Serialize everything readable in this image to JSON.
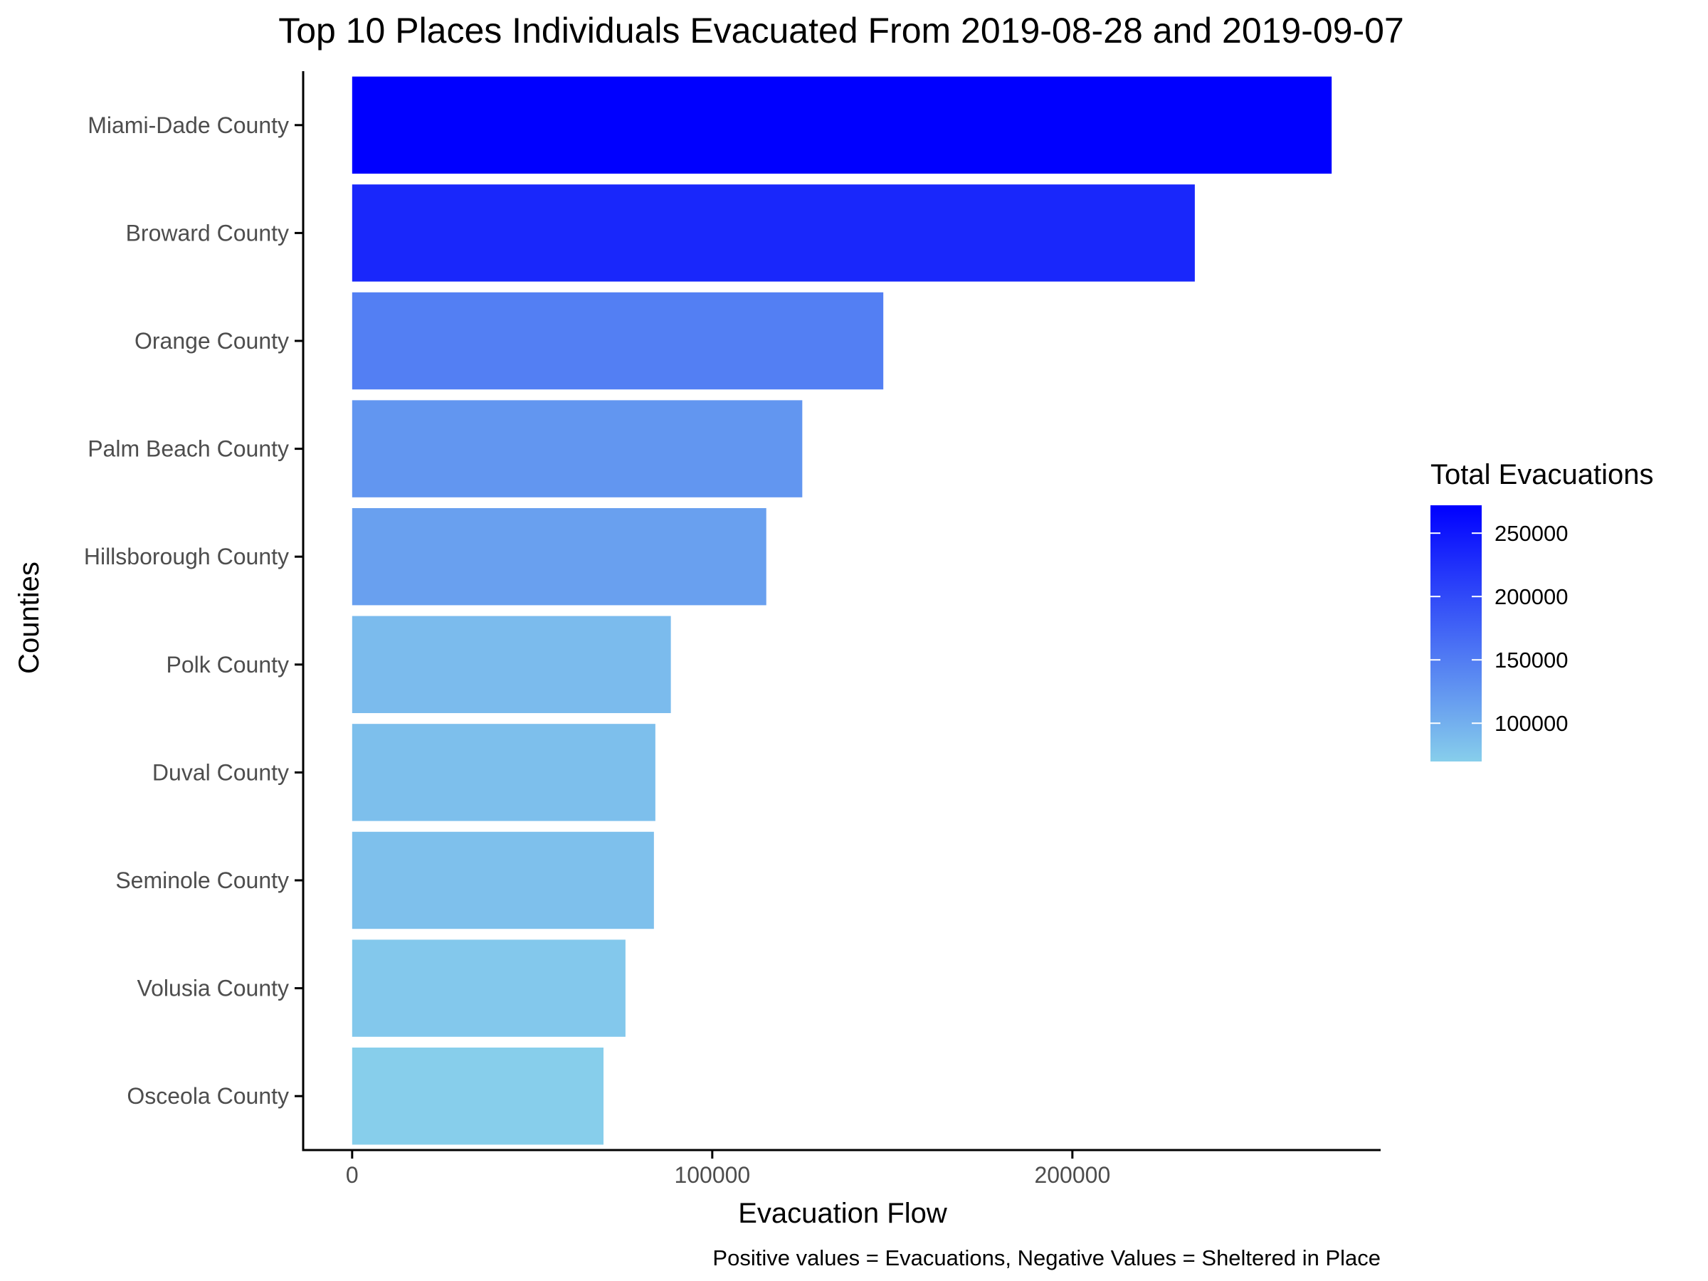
{
  "chart_data": {
    "type": "bar",
    "orientation": "horizontal",
    "title": "Top 10 Places Individuals Evacuated From 2019-08-28 and 2019-09-07",
    "xlabel": "Evacuation Flow",
    "ylabel": "Counties",
    "caption": "Positive values = Evacuations, Negative Values = Sheltered in Place",
    "categories": [
      "Miami-Dade County",
      "Broward County",
      "Orange County",
      "Palm Beach County",
      "Hillsborough County",
      "Polk County",
      "Duval County",
      "Seminole County",
      "Volusia County",
      "Osceola County"
    ],
    "values": [
      272000,
      234000,
      147500,
      125000,
      115000,
      88500,
      84200,
      83800,
      75900,
      69800
    ],
    "xlim": [
      -13600,
      285600
    ],
    "xticks": [
      0,
      100000,
      200000
    ],
    "xtick_labels": [
      "0",
      "100000",
      "200000"
    ],
    "grid": false,
    "legend": {
      "title": "Total Evacuations",
      "position": "right",
      "type": "colorbar",
      "range": [
        69800,
        272000
      ],
      "ticks": [
        100000,
        150000,
        200000,
        250000
      ],
      "tick_labels": [
        "100000",
        "150000",
        "200000",
        "250000"
      ],
      "low_color": "#87CEEB",
      "high_color": "#0000FF"
    }
  }
}
